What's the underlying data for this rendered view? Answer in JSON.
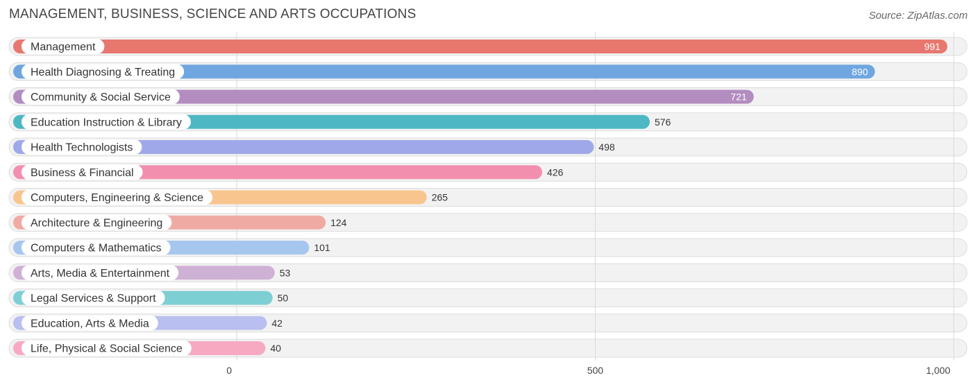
{
  "chart_data": {
    "type": "bar",
    "orientation": "horizontal",
    "title": "MANAGEMENT, BUSINESS, SCIENCE AND ARTS OCCUPATIONS",
    "source": "Source: ZipAtlas.com",
    "xlim": [
      0,
      1000
    ],
    "x_ticks": [
      0,
      500,
      1000
    ],
    "x_tick_labels": [
      "0",
      "500",
      "1,000"
    ],
    "grid": true,
    "categories": [
      "Management",
      "Health Diagnosing & Treating",
      "Community & Social Service",
      "Education Instruction & Library",
      "Health Technologists",
      "Business & Financial",
      "Computers, Engineering & Science",
      "Architecture & Engineering",
      "Computers & Mathematics",
      "Arts, Media & Entertainment",
      "Legal Services & Support",
      "Education, Arts & Media",
      "Life, Physical & Social Science"
    ],
    "values": [
      991,
      890,
      721,
      576,
      498,
      426,
      265,
      124,
      101,
      53,
      50,
      42,
      40
    ],
    "value_labels": [
      "991",
      "890",
      "721",
      "576",
      "498",
      "426",
      "265",
      "124",
      "101",
      "53",
      "50",
      "42",
      "40"
    ],
    "colors": [
      "#e8776f",
      "#6fa6e0",
      "#b38cc0",
      "#4db8c4",
      "#9fa8e8",
      "#f38fae",
      "#f9c58f",
      "#f0aaa4",
      "#a7c6ee",
      "#d0b1d6",
      "#7ecfd4",
      "#b9bff0",
      "#f8a9c2"
    ]
  }
}
